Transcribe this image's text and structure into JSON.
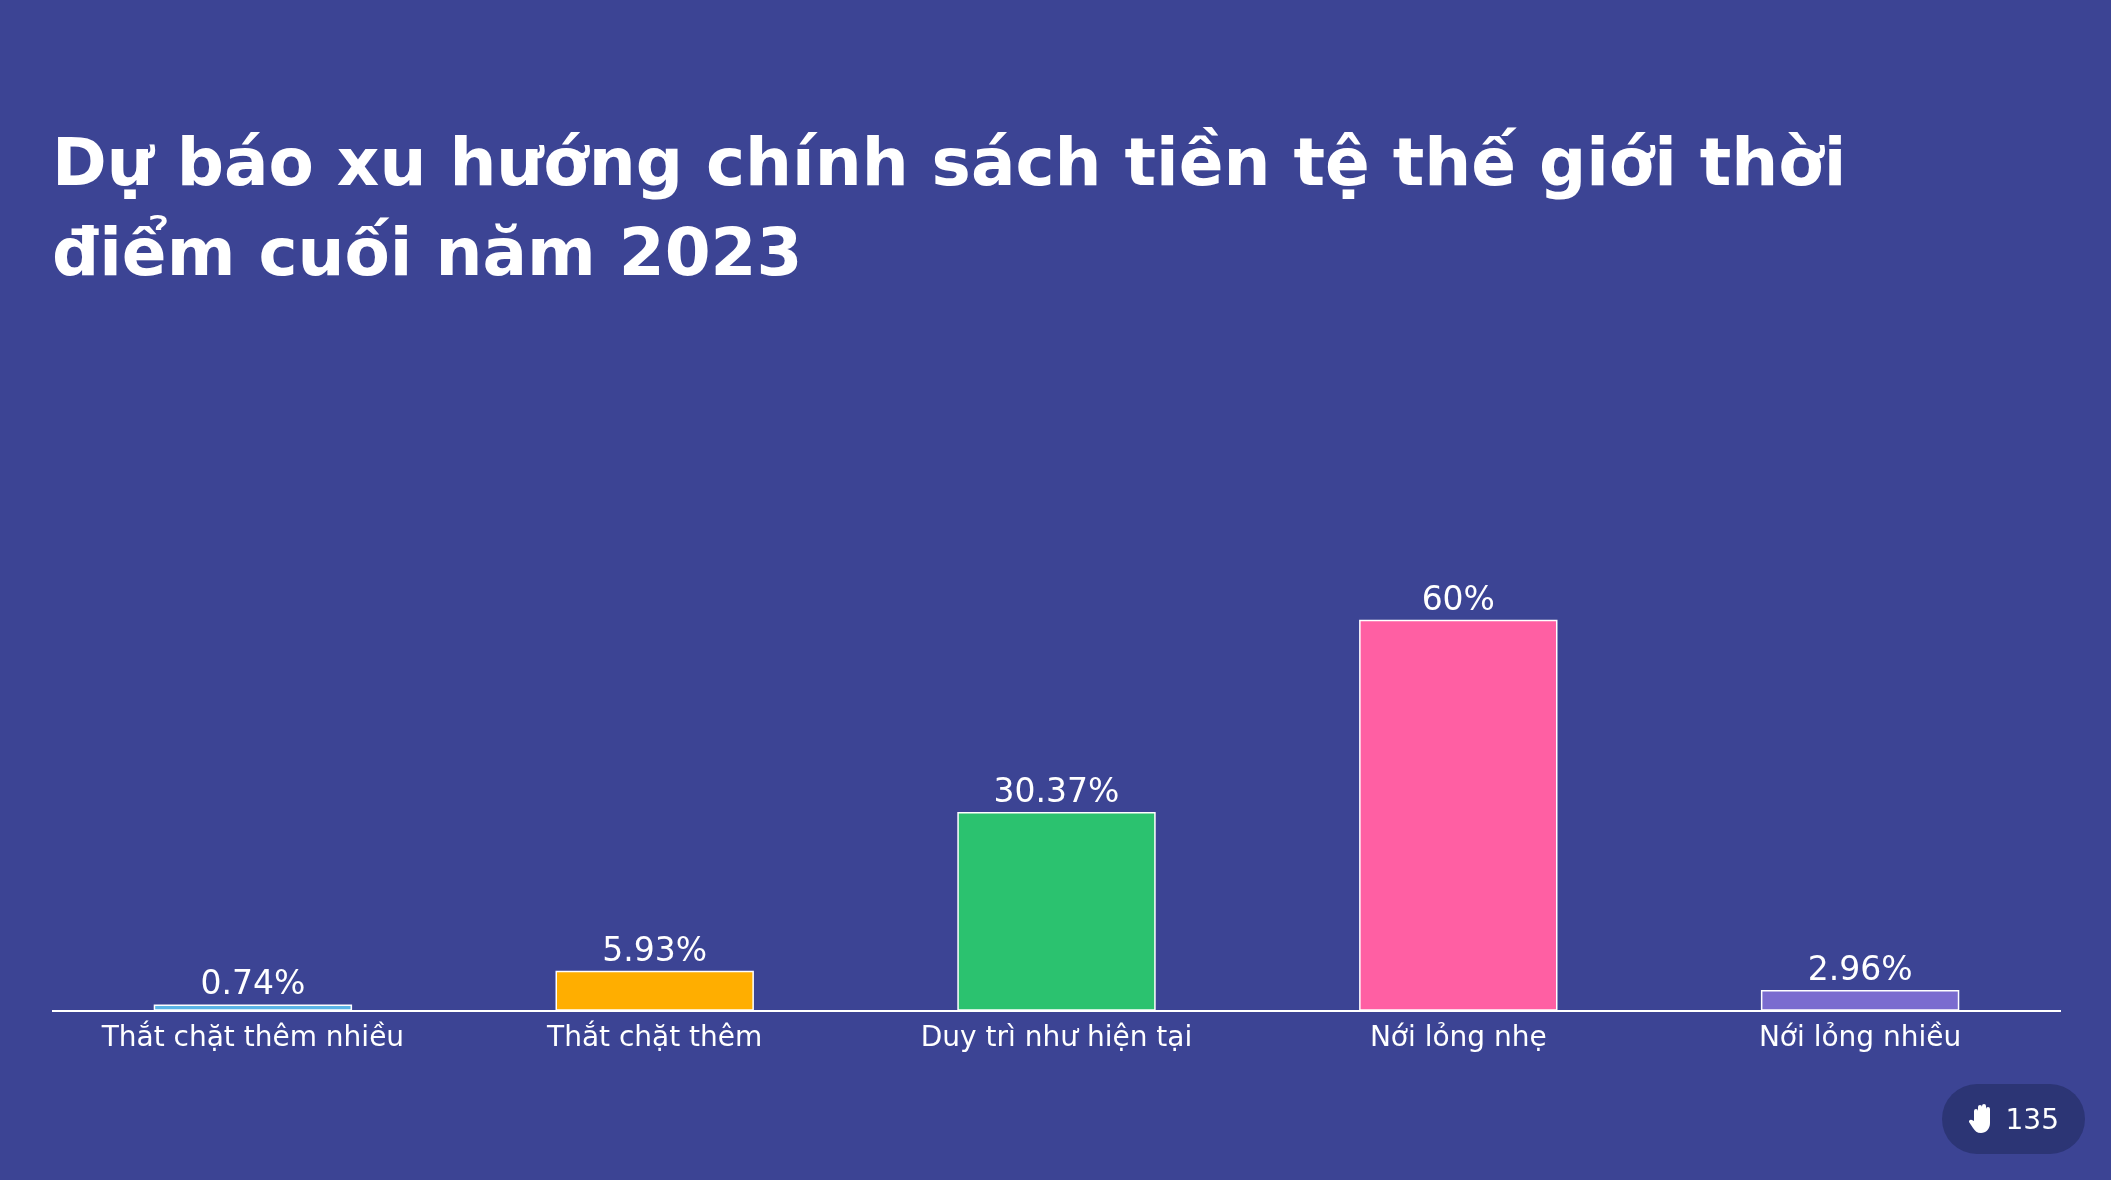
{
  "chart_data": {
    "type": "bar",
    "title": "Dự báo xu hướng chính sách tiền tệ thế giới thời điểm cuối năm 2023",
    "categories": [
      "Thắt chặt thêm nhiều",
      "Thắt chặt thêm",
      "Duy trì như hiện tại",
      "Nới lỏng nhẹ",
      "Nới lỏng nhiều"
    ],
    "values": [
      0.74,
      5.93,
      30.37,
      60,
      2.96
    ],
    "value_labels": [
      "0.74%",
      "5.93%",
      "30.37%",
      "60%",
      "2.96%"
    ],
    "colors": [
      "#5ab4e6",
      "#ffae00",
      "#2bc26f",
      "#ff5fa3",
      "#7a6ccf"
    ],
    "annotations": [
      "135"
    ]
  }
}
